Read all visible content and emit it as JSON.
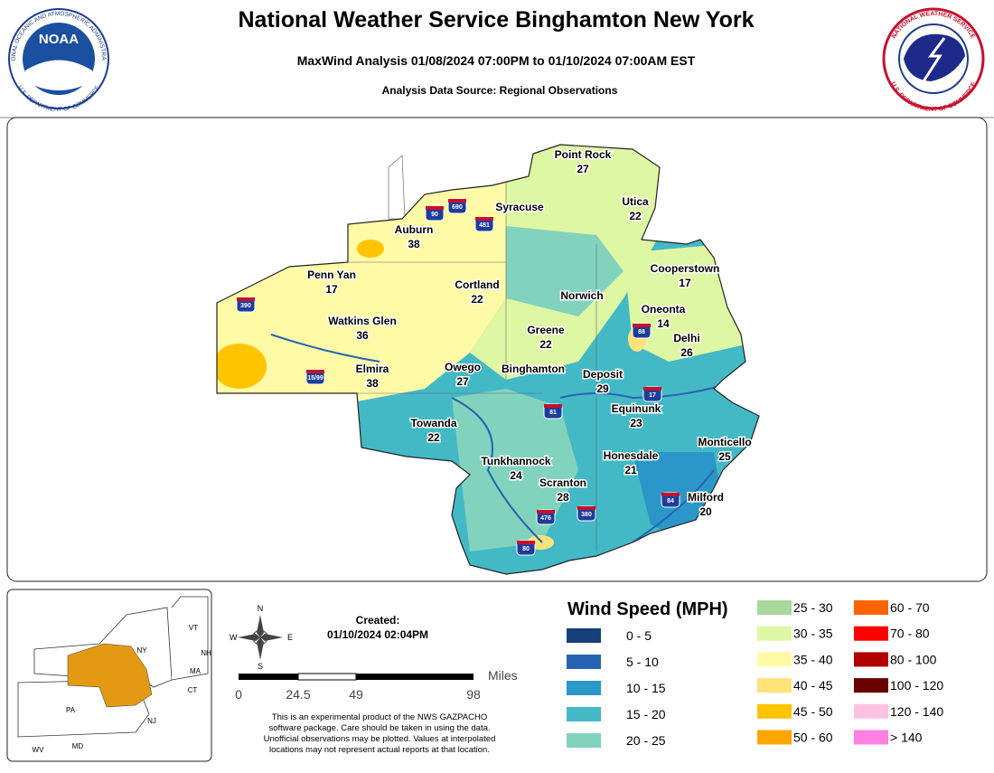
{
  "header": {
    "title": "National Weather Service Binghamton New York",
    "subtitle": "MaxWind Analysis 01/08/2024 07:00PM to 01/10/2024 07:00AM EST",
    "source": "Analysis Data Source: Regional Observations"
  },
  "logos": {
    "noaa": "NOAA",
    "noaa_ring_top": "NATIONAL OCEANIC AND ATMOSPHERIC ADMINISTRATION",
    "noaa_ring_bottom": "U.S. DEPARTMENT OF COMMERCE",
    "nws_ring_top": "NATIONAL WEATHER SERVICE",
    "nws_ring_bottom": "U.S. DEPARTMENT OF COMMERCE"
  },
  "stations": [
    {
      "name": "Point Rock",
      "value": 27
    },
    {
      "name": "Syracuse"
    },
    {
      "name": "Utica",
      "value": 22
    },
    {
      "name": "Auburn",
      "value": 38
    },
    {
      "name": "Penn Yan",
      "value": 17
    },
    {
      "name": "Cortland",
      "value": 22
    },
    {
      "name": "Norwich"
    },
    {
      "name": "Cooperstown",
      "value": 17
    },
    {
      "name": "Oneonta",
      "value": 14
    },
    {
      "name": "Watkins Glen",
      "value": 36
    },
    {
      "name": "Greene",
      "value": 22
    },
    {
      "name": "Delhi",
      "value": 26
    },
    {
      "name": "Elmira",
      "value": 38
    },
    {
      "name": "Owego",
      "value": 27
    },
    {
      "name": "Binghamton"
    },
    {
      "name": "Deposit",
      "value": 29
    },
    {
      "name": "Equinunk",
      "value": 23
    },
    {
      "name": "Towanda",
      "value": 22
    },
    {
      "name": "Monticello",
      "value": 25
    },
    {
      "name": "Honesdale",
      "value": 21
    },
    {
      "name": "Tunkhannock",
      "value": 24
    },
    {
      "name": "Scranton",
      "value": 28
    },
    {
      "name": "Milford",
      "value": 20
    }
  ],
  "highways": [
    "390",
    "90",
    "690",
    "481",
    "88",
    "17",
    "81",
    "380",
    "476",
    "80",
    "84",
    "15/99"
  ],
  "legend": {
    "title": "Wind Speed (MPH)",
    "items": [
      {
        "label": "0 - 5",
        "color": "#173f7a"
      },
      {
        "label": "5 - 10",
        "color": "#2763b3"
      },
      {
        "label": "10 - 15",
        "color": "#2b97c9"
      },
      {
        "label": "15 - 20",
        "color": "#43b9c6"
      },
      {
        "label": "20 - 25",
        "color": "#82d3bd"
      },
      {
        "label": "25 - 30",
        "color": "#a9d79c"
      },
      {
        "label": "30 - 35",
        "color": "#def7a2"
      },
      {
        "label": "35 - 40",
        "color": "#fffaa6"
      },
      {
        "label": "40 - 45",
        "color": "#ffe27a"
      },
      {
        "label": "45 - 50",
        "color": "#ffc400"
      },
      {
        "label": "50 - 60",
        "color": "#ffa500"
      },
      {
        "label": "60 - 70",
        "color": "#ff6400"
      },
      {
        "label": "70 - 80",
        "color": "#ff0000"
      },
      {
        "label": "80 - 100",
        "color": "#b00000"
      },
      {
        "label": "100 - 120",
        "color": "#6a0000"
      },
      {
        "label": "120 - 140",
        "color": "#ffc2e3"
      },
      {
        "label": "> 140",
        "color": "#ff80e0"
      }
    ]
  },
  "created": {
    "label": "Created:",
    "time": "01/10/2024 02:04PM"
  },
  "compass": {
    "n": "N",
    "s": "S",
    "e": "E",
    "w": "W"
  },
  "scale": {
    "unit": "Miles",
    "labels": [
      "0",
      "24.5",
      "49",
      "98"
    ]
  },
  "disclaimer": [
    "This is an experimental product of the NWS GAZPACHO",
    "software package. Care should be taken in using the data.",
    "Unofficial observations may be plotted. Values at interpolated",
    "locations may not represent actual reports at that location."
  ],
  "inset": {
    "states": [
      "VT",
      "NH",
      "MA",
      "CT",
      "NY",
      "PA",
      "NJ",
      "WV",
      "MD"
    ]
  }
}
